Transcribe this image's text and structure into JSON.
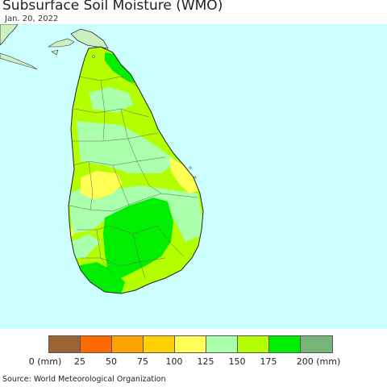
{
  "header": {
    "title": "Subsurface Soil Moisture (WMO)",
    "date": "Jan. 20, 2022"
  },
  "map": {
    "region": "Sri Lanka",
    "ocean_color": "#ccffff",
    "neighbor_land_color": "#ccf0c0",
    "district_border_color": "#555555"
  },
  "legend": {
    "colors": [
      "#9b6233",
      "#ff6a00",
      "#ffa200",
      "#ffd100",
      "#ffff55",
      "#aaffaa",
      "#b3ff00",
      "#00ee00",
      "#77b477"
    ],
    "ticks": [
      "0 (mm)",
      "25",
      "50",
      "75",
      "100",
      "125",
      "150",
      "175",
      "200 (mm)"
    ]
  },
  "footer": {
    "source": "Source: World Meteorological Organization"
  }
}
